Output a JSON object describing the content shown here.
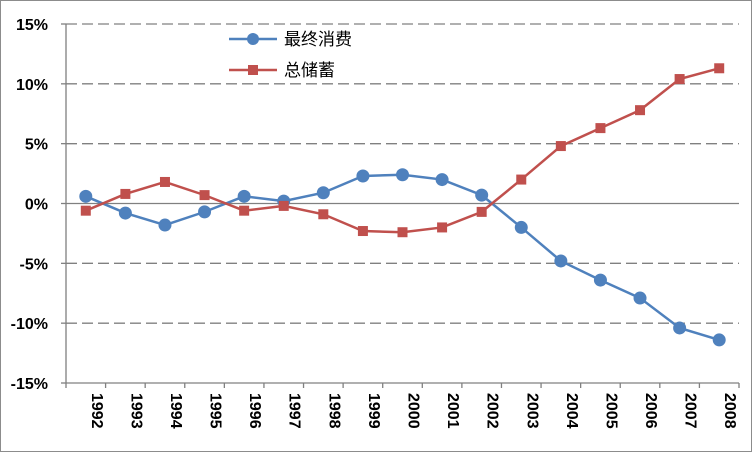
{
  "chart_data": {
    "type": "line",
    "title": "",
    "xlabel": "",
    "ylabel": "",
    "x": [
      "1992",
      "1993",
      "1994",
      "1995",
      "1996",
      "1997",
      "1998",
      "1999",
      "2000",
      "2001",
      "2002",
      "2003",
      "2004",
      "2005",
      "2006",
      "2007",
      "2008"
    ],
    "ylim": [
      -15,
      15
    ],
    "y_ticks": [
      15,
      10,
      5,
      0,
      -5,
      -10,
      -15
    ],
    "y_tick_labels": [
      "15%",
      "10%",
      "5%",
      "0%",
      "-5%",
      "-10%",
      "-15%"
    ],
    "grid": "horizontal dashed",
    "legend_position": "top-center",
    "series": [
      {
        "name": "最终消费",
        "color": "#4f81bd",
        "marker": "circle",
        "values": [
          0.6,
          -0.8,
          -1.8,
          -0.7,
          0.6,
          0.2,
          0.9,
          2.3,
          2.4,
          2.0,
          0.7,
          -2.0,
          -4.8,
          -6.4,
          -7.9,
          -10.4,
          -11.4
        ]
      },
      {
        "name": "总储蓄",
        "color": "#c0504d",
        "marker": "square",
        "values": [
          -0.6,
          0.8,
          1.8,
          0.7,
          -0.6,
          -0.2,
          -0.9,
          -2.3,
          -2.4,
          -2.0,
          -0.7,
          2.0,
          4.8,
          6.3,
          7.8,
          10.4,
          11.3
        ]
      }
    ]
  }
}
